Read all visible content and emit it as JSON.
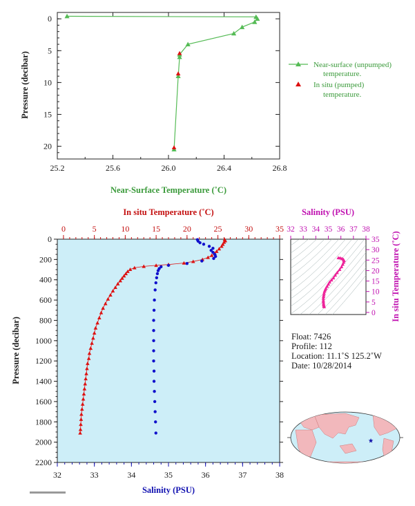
{
  "colors": {
    "near_surface": "#55bb55",
    "in_situ_temp": "#dd1111",
    "salinity": "#1111cc",
    "ts_curve": "#ee2299",
    "panel_bg": "#cdeef8",
    "axis_green_text": "#3a9a3a"
  },
  "chart_data": [
    {
      "type": "line",
      "id": "near-surface",
      "xlabel": "Near-Surface Temperature (˚C)",
      "ylabel": "Pressure (decibar)",
      "xlim": [
        25.2,
        26.8
      ],
      "ylim": [
        22,
        -1
      ],
      "xticks": [
        25.2,
        25.6,
        26.0,
        26.4,
        26.8
      ],
      "xtick_labels": [
        "25.2",
        "25.6",
        "26.0",
        "26.4",
        "26.8"
      ],
      "yticks": [
        0,
        5,
        10,
        15,
        20
      ],
      "ytick_labels": [
        "0",
        "5",
        "10",
        "15",
        "20"
      ],
      "legend": [
        {
          "label": "Near-surface (unpumped)",
          "label2": "temperature."
        },
        {
          "label": "In situ (pumped)",
          "label2": "temperature."
        }
      ],
      "series": [
        {
          "name": "Near-surface (unpumped) temperature.",
          "points": [
            [
              25.27,
              -0.4
            ],
            [
              26.63,
              -0.3
            ],
            [
              26.64,
              0.0
            ],
            [
              26.62,
              0.5
            ],
            [
              26.53,
              1.3
            ],
            [
              26.47,
              2.3
            ],
            [
              26.14,
              4.0
            ],
            [
              26.08,
              5.6
            ],
            [
              26.08,
              6.0
            ],
            [
              26.07,
              9.0
            ],
            [
              26.04,
              20.5
            ]
          ]
        },
        {
          "name": "In situ (pumped) temperature.",
          "points": [
            [
              26.08,
              5.4
            ],
            [
              26.07,
              8.6
            ],
            [
              26.04,
              20.2
            ]
          ]
        }
      ]
    },
    {
      "type": "scatter",
      "id": "profile",
      "top_xlabel": "In situ Temperature (˚C)",
      "bottom_xlabel": "Salinity (PSU)",
      "ylabel": "Pressure (decibar)",
      "temp_lim": [
        -1,
        35
      ],
      "sal_lim": [
        32,
        38
      ],
      "ylim": [
        2200,
        0
      ],
      "temp_ticks": [
        0,
        5,
        10,
        15,
        20,
        25,
        30,
        35
      ],
      "temp_tick_labels": [
        "0",
        "5",
        "10",
        "15",
        "20",
        "25",
        "30",
        "35"
      ],
      "sal_ticks": [
        32,
        33,
        34,
        35,
        36,
        37,
        38
      ],
      "sal_tick_labels": [
        "32",
        "33",
        "34",
        "35",
        "36",
        "37",
        "38"
      ],
      "pressure_ticks": [
        0,
        200,
        400,
        600,
        800,
        1000,
        1200,
        1400,
        1600,
        1800,
        2000,
        2200
      ],
      "pressure_tick_labels": [
        "0",
        "200",
        "400",
        "600",
        "800",
        "1000",
        "1200",
        "1400",
        "1600",
        "1800",
        "2000",
        "2200"
      ],
      "temperature": [
        [
          26.1,
          5
        ],
        [
          26.2,
          15
        ],
        [
          26.0,
          30
        ],
        [
          25.8,
          50
        ],
        [
          25.6,
          70
        ],
        [
          25.2,
          95
        ],
        [
          24.8,
          120
        ],
        [
          24.5,
          140
        ],
        [
          24.0,
          160
        ],
        [
          23.4,
          180
        ],
        [
          22.5,
          200
        ],
        [
          21.0,
          220
        ],
        [
          19.5,
          235
        ],
        [
          17.0,
          250
        ],
        [
          15.0,
          258
        ],
        [
          13.0,
          268
        ],
        [
          11.5,
          282
        ],
        [
          10.8,
          298
        ],
        [
          10.4,
          318
        ],
        [
          10.1,
          340
        ],
        [
          9.8,
          362
        ],
        [
          9.5,
          385
        ],
        [
          9.2,
          410
        ],
        [
          8.8,
          440
        ],
        [
          8.4,
          475
        ],
        [
          8.0,
          510
        ],
        [
          7.6,
          550
        ],
        [
          7.2,
          590
        ],
        [
          6.8,
          635
        ],
        [
          6.4,
          680
        ],
        [
          6.1,
          725
        ],
        [
          5.8,
          775
        ],
        [
          5.5,
          825
        ],
        [
          5.2,
          875
        ],
        [
          5.0,
          925
        ],
        [
          4.8,
          975
        ],
        [
          4.6,
          1025
        ],
        [
          4.4,
          1075
        ],
        [
          4.2,
          1125
        ],
        [
          4.1,
          1175
        ],
        [
          3.9,
          1225
        ],
        [
          3.8,
          1275
        ],
        [
          3.7,
          1325
        ],
        [
          3.6,
          1375
        ],
        [
          3.5,
          1425
        ],
        [
          3.4,
          1475
        ],
        [
          3.3,
          1525
        ],
        [
          3.2,
          1575
        ],
        [
          3.1,
          1625
        ],
        [
          3.0,
          1675
        ],
        [
          2.9,
          1725
        ],
        [
          2.85,
          1775
        ],
        [
          2.8,
          1825
        ],
        [
          2.75,
          1875
        ],
        [
          2.7,
          1910
        ]
      ],
      "salinity": [
        [
          35.78,
          5
        ],
        [
          35.8,
          20
        ],
        [
          35.85,
          35
        ],
        [
          35.95,
          50
        ],
        [
          36.1,
          70
        ],
        [
          36.2,
          90
        ],
        [
          36.15,
          110
        ],
        [
          36.2,
          130
        ],
        [
          36.25,
          150
        ],
        [
          36.27,
          170
        ],
        [
          36.22,
          190
        ],
        [
          35.9,
          215
        ],
        [
          35.5,
          240
        ],
        [
          35.0,
          258
        ],
        [
          34.8,
          272
        ],
        [
          34.75,
          290
        ],
        [
          34.72,
          310
        ],
        [
          34.7,
          340
        ],
        [
          34.68,
          380
        ],
        [
          34.66,
          430
        ],
        [
          34.64,
          500
        ],
        [
          34.62,
          600
        ],
        [
          34.61,
          700
        ],
        [
          34.6,
          800
        ],
        [
          34.6,
          900
        ],
        [
          34.6,
          1000
        ],
        [
          34.6,
          1100
        ],
        [
          34.6,
          1200
        ],
        [
          34.61,
          1300
        ],
        [
          34.61,
          1400
        ],
        [
          34.62,
          1500
        ],
        [
          34.63,
          1600
        ],
        [
          34.64,
          1700
        ],
        [
          34.65,
          1800
        ],
        [
          34.66,
          1910
        ]
      ]
    },
    {
      "type": "scatter",
      "id": "ts-diagram",
      "xlabel": "Salinity (PSU)",
      "ylabel": "In situ Temperature (˚C)",
      "xlim": [
        32,
        38
      ],
      "ylim": [
        -1,
        35
      ],
      "xticks": [
        32,
        33,
        34,
        35,
        36,
        37,
        38
      ],
      "xtick_labels": [
        "32",
        "33",
        "34",
        "35",
        "36",
        "37",
        "38"
      ],
      "yticks": [
        0,
        5,
        10,
        15,
        20,
        25,
        30,
        35
      ],
      "ytick_labels": [
        "0",
        "5",
        "10",
        "15",
        "20",
        "25",
        "30",
        "35"
      ],
      "points": [
        [
          34.66,
          2.7
        ],
        [
          34.65,
          3.1
        ],
        [
          34.63,
          3.6
        ],
        [
          34.62,
          4.2
        ],
        [
          34.61,
          5.0
        ],
        [
          34.6,
          5.8
        ],
        [
          34.6,
          6.8
        ],
        [
          34.62,
          7.6
        ],
        [
          34.64,
          8.4
        ],
        [
          34.66,
          9.2
        ],
        [
          34.7,
          10.1
        ],
        [
          34.75,
          10.8
        ],
        [
          34.8,
          11.5
        ],
        [
          34.9,
          12.5
        ],
        [
          35.0,
          13.5
        ],
        [
          35.1,
          14.5
        ],
        [
          35.25,
          15.5
        ],
        [
          35.4,
          16.5
        ],
        [
          35.55,
          17.8
        ],
        [
          35.7,
          19.0
        ],
        [
          35.9,
          20.5
        ],
        [
          36.05,
          21.8
        ],
        [
          36.15,
          23.0
        ],
        [
          36.22,
          24.0
        ],
        [
          36.25,
          24.8
        ],
        [
          36.2,
          25.3
        ],
        [
          36.1,
          25.7
        ],
        [
          35.95,
          26.0
        ],
        [
          35.8,
          26.1
        ]
      ]
    }
  ],
  "info": {
    "float": "Float:  7426",
    "profile": "Profile:  112",
    "location": "Location:  11.1˚S  125.2˚W",
    "date": "Date:  10/28/2014"
  },
  "map": {
    "marker": "float-position-star",
    "lon": -125.2,
    "lat": -11.1
  }
}
